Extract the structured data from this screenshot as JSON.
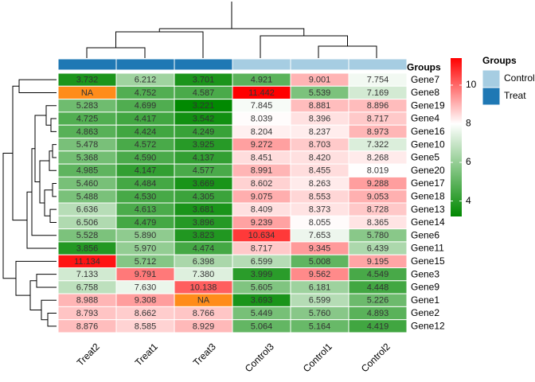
{
  "chart_data": {
    "type": "heatmap",
    "columns": [
      "Treat2",
      "Treat1",
      "Treat3",
      "Control3",
      "Control1",
      "Control2"
    ],
    "column_groups": [
      "Treat",
      "Treat",
      "Treat",
      "Control",
      "Control",
      "Control"
    ],
    "rows": [
      {
        "gene": "Gene7",
        "values": [
          "3.732",
          "6.212",
          "3.701",
          "4.921",
          "9.001",
          "7.754"
        ]
      },
      {
        "gene": "Gene8",
        "values": [
          "NA",
          "4.752",
          "4.587",
          "11.442",
          "5.539",
          "7.169"
        ]
      },
      {
        "gene": "Gene19",
        "values": [
          "5.283",
          "4.699",
          "3.221",
          "7.845",
          "8.881",
          "8.896"
        ]
      },
      {
        "gene": "Gene4",
        "values": [
          "4.725",
          "4.417",
          "3.542",
          "8.039",
          "8.396",
          "8.717"
        ]
      },
      {
        "gene": "Gene16",
        "values": [
          "4.863",
          "4.424",
          "4.249",
          "8.204",
          "8.237",
          "8.973"
        ]
      },
      {
        "gene": "Gene10",
        "values": [
          "5.478",
          "4.572",
          "3.925",
          "9.272",
          "8.703",
          "7.322"
        ]
      },
      {
        "gene": "Gene5",
        "values": [
          "5.368",
          "4.590",
          "4.137",
          "8.451",
          "8.420",
          "8.268"
        ]
      },
      {
        "gene": "Gene20",
        "values": [
          "4.985",
          "4.147",
          "4.577",
          "8.991",
          "8.455",
          "8.019"
        ]
      },
      {
        "gene": "Gene17",
        "values": [
          "5.460",
          "4.484",
          "3.669",
          "8.602",
          "8.263",
          "9.288"
        ]
      },
      {
        "gene": "Gene18",
        "values": [
          "5.488",
          "4.530",
          "4.305",
          "9.075",
          "8.553",
          "9.053"
        ]
      },
      {
        "gene": "Gene13",
        "values": [
          "6.636",
          "4.613",
          "3.681",
          "8.409",
          "8.373",
          "8.728"
        ]
      },
      {
        "gene": "Gene14",
        "values": [
          "6.506",
          "4.479",
          "3.896",
          "9.239",
          "8.055",
          "8.365"
        ]
      },
      {
        "gene": "Gene6",
        "values": [
          "5.528",
          "5.890",
          "3.823",
          "10.634",
          "7.653",
          "5.780"
        ]
      },
      {
        "gene": "Gene11",
        "values": [
          "3.856",
          "5.970",
          "4.474",
          "8.717",
          "9.345",
          "6.439"
        ]
      },
      {
        "gene": "Gene15",
        "values": [
          "11.134",
          "5.712",
          "6.398",
          "6.599",
          "5.008",
          "9.195"
        ]
      },
      {
        "gene": "Gene3",
        "values": [
          "7.133",
          "9.791",
          "7.380",
          "3.999",
          "9.562",
          "4.549"
        ]
      },
      {
        "gene": "Gene9",
        "values": [
          "6.758",
          "7.630",
          "10.138",
          "5.605",
          "6.181",
          "4.448"
        ]
      },
      {
        "gene": "Gene1",
        "values": [
          "8.988",
          "9.308",
          "NA",
          "3.693",
          "6.599",
          "5.226"
        ]
      },
      {
        "gene": "Gene2",
        "values": [
          "8.793",
          "8.662",
          "8.766",
          "5.449",
          "5.760",
          "4.893"
        ]
      },
      {
        "gene": "Gene12",
        "values": [
          "8.876",
          "8.585",
          "8.929",
          "5.064",
          "5.164",
          "4.419"
        ]
      }
    ],
    "annotation_label": "Groups",
    "group_colors": {
      "Control": "#a6cde2",
      "Treat": "#1f78b4"
    },
    "na_color": "#ff8c1a",
    "color_scale": {
      "min": 3.2,
      "max": 11.4,
      "stops": [
        {
          "value": 3.2,
          "color": "#008800"
        },
        {
          "value": 8.0,
          "color": "#ffffff"
        },
        {
          "value": 11.4,
          "color": "#ff0000"
        }
      ],
      "ticks": [
        "4",
        "6",
        "8",
        "10"
      ]
    },
    "legend": {
      "title": "Groups",
      "items": [
        {
          "label": "Control",
          "color": "#a6cde2"
        },
        {
          "label": "Treat",
          "color": "#1f78b4"
        }
      ]
    }
  }
}
